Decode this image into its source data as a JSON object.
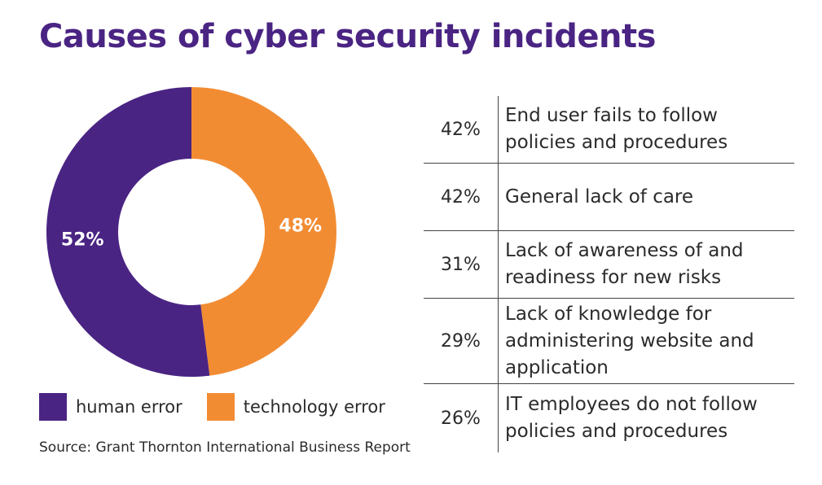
{
  "title": "Causes of cyber security incidents",
  "colors": {
    "title": "#4a2483",
    "human": "#4a2483",
    "technology": "#f28c33",
    "text": "#2b2b2b"
  },
  "chart_data": [
    {
      "type": "pie",
      "variant": "donut",
      "slices": [
        {
          "label": "human error",
          "value": 52,
          "display": "52%",
          "color": "#4a2483"
        },
        {
          "label": "technology error",
          "value": 48,
          "display": "48%",
          "color": "#f28c33"
        }
      ]
    },
    {
      "type": "table",
      "rows": [
        {
          "pct": "42%",
          "label": "End user fails to follow policies and procedures"
        },
        {
          "pct": "42%",
          "label": "General lack of care"
        },
        {
          "pct": "31%",
          "label": "Lack of awareness of and readiness for new risks"
        },
        {
          "pct": "29%",
          "label": "Lack of knowledge for administering website and application"
        },
        {
          "pct": "26%",
          "label": "IT employees do not follow policies and procedures"
        }
      ]
    }
  ],
  "legend": [
    {
      "label": "human error",
      "color": "#4a2483"
    },
    {
      "label": "technology error",
      "color": "#f28c33"
    }
  ],
  "source": "Source: Grant Thornton International Business Report"
}
